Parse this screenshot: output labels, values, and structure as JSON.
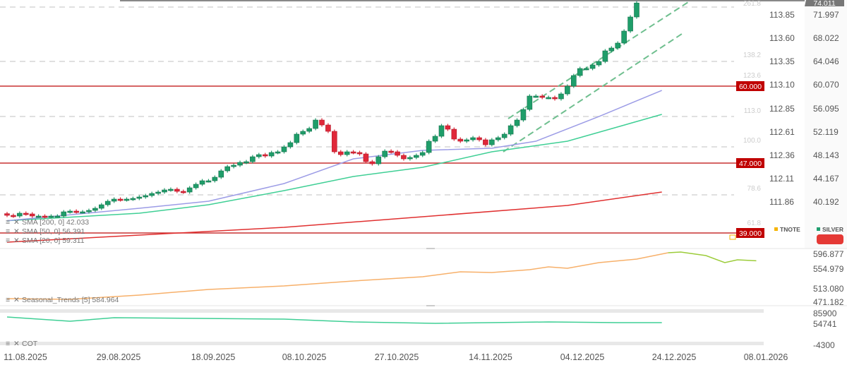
{
  "price_axis_tnote": [
    "113.85",
    "113.60",
    "113.35",
    "113.10",
    "112.85",
    "112.61",
    "112.36",
    "112.11",
    "111.86"
  ],
  "price_axis_silver": [
    "71.997",
    "68.022",
    "64.046",
    "60.070",
    "56.095",
    "52.119",
    "48.143",
    "44.167",
    "40.192"
  ],
  "last_price_tag": "74.011",
  "fib_labels": [
    "261.8",
    "138.2",
    "123.6",
    "113.0",
    "100.0",
    "78.6",
    "61.8"
  ],
  "horizontal_levels": [
    {
      "label": "60.000",
      "color": "#c00000"
    },
    {
      "label": "47.000",
      "color": "#c00000"
    },
    {
      "label": "39.000",
      "color": "#c00000"
    }
  ],
  "legend": {
    "sma200": "SMA [200, 0] 42.033",
    "sma50": "SMA [50, 0] 56.391",
    "sma20": "SMA [20, 0] 59.311",
    "seasonal": "Seasonal_Trends [5] 584.964",
    "cot": "COT"
  },
  "instruments": [
    {
      "name": "TNOTE",
      "color": "#f5b400"
    },
    {
      "name": "SILVER",
      "color": "#20a070"
    }
  ],
  "seasonal_axis": [
    "596.877",
    "554.979",
    "513.080",
    "471.182"
  ],
  "cot_axis": [
    "85900",
    "54741",
    "-4300"
  ],
  "dates": [
    "11.08.2025",
    "29.08.2025",
    "18.09.2025",
    "08.10.2025",
    "27.10.2025",
    "14.11.2025",
    "04.12.2025",
    "24.12.2025",
    "08.01.2026"
  ],
  "colors": {
    "up": "#1f9e6a",
    "down": "#e0283a",
    "sma20": "#9c9ce6",
    "sma50": "#3fcf95",
    "sma200": "#e03030",
    "seasonal": "#f7b06a",
    "seasonal_future": "#9ccc3a",
    "cot": "#3fcf95"
  },
  "chart_data": {
    "type": "candlestick",
    "series_name": "SILVER",
    "closes": [
      37.91,
      37.79,
      38.27,
      38.15,
      37.79,
      37.79,
      37.67,
      37.79,
      37.79,
      38.51,
      38.63,
      38.51,
      38.51,
      38.75,
      39.11,
      39.71,
      40.31,
      40.67,
      40.55,
      40.67,
      40.79,
      41.03,
      41.27,
      41.63,
      41.87,
      42.23,
      42.35,
      41.99,
      41.87,
      42.59,
      43.19,
      43.79,
      43.79,
      44.39,
      45.47,
      46.19,
      46.43,
      46.91,
      47.03,
      47.87,
      48.23,
      47.99,
      48.59,
      48.71,
      49.55,
      50.27,
      51.71,
      52.19,
      52.67,
      54.11,
      53.27,
      52.19,
      48.71,
      48.23,
      48.71,
      48.59,
      48.35,
      47.03,
      46.67,
      47.87,
      48.83,
      48.71,
      48.11,
      47.51,
      47.75,
      48.11,
      48.59,
      50.51,
      51.35,
      53.15,
      52.55,
      50.87,
      50.51,
      50.75,
      51.11,
      50.75,
      49.91,
      50.75,
      51.11,
      51.71,
      53.15,
      54.11,
      55.91,
      58.19,
      58.19,
      57.95,
      57.95,
      57.71,
      58.55,
      59.87,
      61.67,
      62.87,
      62.87,
      63.47,
      64.07,
      65.87,
      66.35,
      67.19,
      69.23,
      71.63,
      74.01
    ],
    "sma20": [
      [
        0,
        36.99
      ],
      [
        21,
        39.11
      ],
      [
        32,
        40.31
      ],
      [
        44,
        43.31
      ],
      [
        55,
        47.51
      ],
      [
        66,
        48.95
      ],
      [
        77,
        49.31
      ],
      [
        84,
        50.51
      ],
      [
        94,
        54.71
      ],
      [
        104,
        59.15
      ]
    ],
    "sma50": [
      [
        0,
        36.99
      ],
      [
        21,
        38.27
      ],
      [
        32,
        39.71
      ],
      [
        44,
        42.11
      ],
      [
        55,
        44.51
      ],
      [
        66,
        46.07
      ],
      [
        77,
        48.71
      ],
      [
        89,
        50.51
      ],
      [
        104,
        55.07
      ]
    ],
    "sma200": [
      [
        0,
        33.35
      ],
      [
        21,
        34.55
      ],
      [
        44,
        35.87
      ],
      [
        66,
        37.67
      ],
      [
        89,
        39.59
      ],
      [
        104,
        41.87
      ]
    ],
    "seasonal": [
      [
        0,
        483.75
      ],
      [
        10,
        481.96
      ],
      [
        21,
        492.73
      ],
      [
        32,
        507.09
      ],
      [
        44,
        516.07
      ],
      [
        55,
        528.64
      ],
      [
        66,
        539.41
      ],
      [
        72,
        551.98
      ],
      [
        77,
        550.19
      ],
      [
        83,
        557.37
      ],
      [
        86,
        564.55
      ],
      [
        89,
        560.96
      ],
      [
        94,
        575.33
      ],
      [
        100,
        584.3
      ],
      [
        105,
        600.47
      ]
    ],
    "seasonal_future": [
      [
        105,
        600.47
      ],
      [
        107,
        602.26
      ],
      [
        111,
        593.28
      ],
      [
        114,
        575.33
      ],
      [
        116,
        582.51
      ],
      [
        119,
        580.0
      ]
    ],
    "cot": [
      [
        0,
        70868
      ],
      [
        10,
        59594
      ],
      [
        17,
        68989
      ],
      [
        44,
        65231
      ],
      [
        55,
        57715
      ],
      [
        68,
        53957
      ],
      [
        86,
        57715
      ],
      [
        97,
        55836
      ],
      [
        104,
        55836
      ]
    ],
    "silver_axis_range": [
      40.192,
      71.997
    ]
  }
}
